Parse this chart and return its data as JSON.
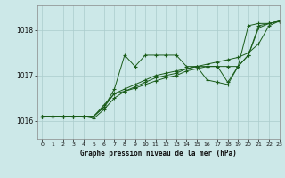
{
  "title": "Graphe pression niveau de la mer (hPa)",
  "bg_color": "#cce8e8",
  "grid_color": "#aacccc",
  "line_color": "#1a5c1a",
  "xlim": [
    -0.5,
    23
  ],
  "ylim": [
    1015.6,
    1018.55
  ],
  "yticks": [
    1016,
    1017,
    1018
  ],
  "xticks": [
    0,
    1,
    2,
    3,
    4,
    5,
    6,
    7,
    8,
    9,
    10,
    11,
    12,
    13,
    14,
    15,
    16,
    17,
    18,
    19,
    20,
    21,
    22,
    23
  ],
  "series": [
    {
      "x": [
        0,
        1,
        2,
        3,
        4,
        5,
        6,
        7,
        8,
        9,
        10,
        11,
        12,
        13,
        14,
        15,
        16,
        17,
        18,
        19,
        20,
        21,
        22,
        23
      ],
      "y": [
        1016.1,
        1016.1,
        1016.1,
        1016.1,
        1016.1,
        1016.1,
        1016.3,
        1016.7,
        1017.45,
        1017.2,
        1017.45,
        1017.45,
        1017.45,
        1017.45,
        1017.2,
        1017.2,
        1017.2,
        1017.2,
        1016.85,
        1017.2,
        1018.1,
        1018.15,
        1018.15,
        1018.2
      ]
    },
    {
      "x": [
        0,
        1,
        2,
        3,
        4,
        5,
        6,
        7,
        8,
        9,
        10,
        11,
        12,
        13,
        14,
        15,
        16,
        17,
        18,
        19,
        20,
        21,
        22,
        23
      ],
      "y": [
        1016.1,
        1016.1,
        1016.1,
        1016.1,
        1016.1,
        1016.1,
        1016.35,
        1016.6,
        1016.7,
        1016.8,
        1016.9,
        1017.0,
        1017.05,
        1017.1,
        1017.15,
        1017.2,
        1017.25,
        1017.3,
        1017.35,
        1017.4,
        1017.5,
        1017.7,
        1018.1,
        1018.2
      ]
    },
    {
      "x": [
        0,
        1,
        2,
        3,
        4,
        5,
        6,
        7,
        8,
        9,
        10,
        11,
        12,
        13,
        14,
        15,
        16,
        17,
        18,
        19,
        20,
        21,
        22,
        23
      ],
      "y": [
        1016.1,
        1016.1,
        1016.1,
        1016.1,
        1016.1,
        1016.05,
        1016.25,
        1016.5,
        1016.65,
        1016.75,
        1016.85,
        1016.95,
        1017.0,
        1017.05,
        1017.15,
        1017.2,
        1016.9,
        1016.85,
        1016.8,
        1017.2,
        1017.45,
        1018.1,
        1018.15,
        1018.2
      ]
    },
    {
      "x": [
        0,
        1,
        2,
        3,
        4,
        5,
        6,
        7,
        8,
        9,
        10,
        11,
        12,
        13,
        14,
        15,
        16,
        17,
        18,
        19,
        20,
        21,
        22,
        23
      ],
      "y": [
        1016.1,
        1016.1,
        1016.1,
        1016.1,
        1016.1,
        1016.1,
        1016.3,
        1016.6,
        1016.65,
        1016.72,
        1016.8,
        1016.88,
        1016.95,
        1017.0,
        1017.1,
        1017.15,
        1017.2,
        1017.2,
        1017.2,
        1017.2,
        1017.45,
        1018.05,
        1018.15,
        1018.2
      ]
    }
  ]
}
